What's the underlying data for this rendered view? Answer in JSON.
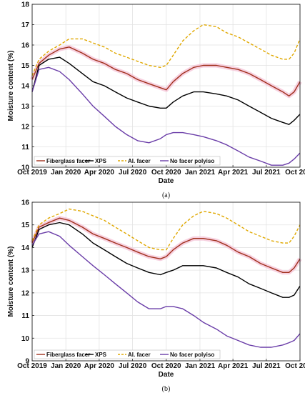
{
  "chart_data": [
    {
      "type": "line",
      "caption": "(a)",
      "xlabel": "Date",
      "ylabel": "Moisture content (%)",
      "ylim": [
        10,
        18
      ],
      "yticks": [
        10,
        11,
        12,
        13,
        14,
        15,
        16,
        17,
        18
      ],
      "xlim": [
        "2019-10-01",
        "2021-10-01"
      ],
      "xticks": [
        "2019-10-01",
        "2020-01-01",
        "2020-04-01",
        "2020-07-01",
        "2020-10-01",
        "2021-01-01",
        "2021-04-01",
        "2021-07-01",
        "2021-10-01"
      ],
      "xticklabels": [
        "Oct 2019",
        "Jan 2020",
        "Apr 2020",
        "Jul 2020",
        "Oct 2020",
        "Jan 2021",
        "Apr 2021",
        "Jul 2021",
        "Oct 2021"
      ],
      "grid": true,
      "legend_position": "bottom",
      "series": [
        {
          "name": "Fiberglass facer",
          "color": "#a0301c",
          "dash": "solid",
          "band": "#f5c6d8",
          "x": [
            "2019-10-01",
            "2019-10-20",
            "2019-11-15",
            "2019-12-15",
            "2020-01-10",
            "2020-02-15",
            "2020-03-15",
            "2020-04-15",
            "2020-05-15",
            "2020-06-15",
            "2020-07-15",
            "2020-08-15",
            "2020-09-15",
            "2020-10-01",
            "2020-10-20",
            "2020-11-15",
            "2020-12-15",
            "2021-01-10",
            "2021-02-15",
            "2021-03-15",
            "2021-04-15",
            "2021-05-15",
            "2021-06-15",
            "2021-07-15",
            "2021-08-15",
            "2021-09-01",
            "2021-09-15",
            "2021-10-01"
          ],
          "y": [
            14.3,
            15.1,
            15.5,
            15.8,
            15.9,
            15.6,
            15.3,
            15.1,
            14.8,
            14.6,
            14.3,
            14.1,
            13.9,
            13.8,
            14.2,
            14.6,
            14.9,
            15.0,
            15.0,
            14.9,
            14.8,
            14.6,
            14.3,
            14.0,
            13.7,
            13.5,
            13.7,
            14.2
          ]
        },
        {
          "name": "XPS",
          "color": "#000000",
          "dash": "solid",
          "band": "",
          "x": [
            "2019-10-01",
            "2019-10-20",
            "2019-11-15",
            "2019-12-15",
            "2020-01-10",
            "2020-02-15",
            "2020-03-15",
            "2020-04-15",
            "2020-05-15",
            "2020-06-15",
            "2020-07-15",
            "2020-08-15",
            "2020-09-15",
            "2020-10-01",
            "2020-10-20",
            "2020-11-15",
            "2020-12-15",
            "2021-01-10",
            "2021-02-15",
            "2021-03-15",
            "2021-04-15",
            "2021-05-15",
            "2021-06-15",
            "2021-07-15",
            "2021-08-15",
            "2021-09-01",
            "2021-09-15",
            "2021-10-01"
          ],
          "y": [
            13.7,
            15.0,
            15.3,
            15.4,
            15.1,
            14.6,
            14.2,
            14.0,
            13.7,
            13.4,
            13.2,
            13.0,
            12.9,
            12.9,
            13.2,
            13.5,
            13.7,
            13.7,
            13.6,
            13.5,
            13.3,
            13.0,
            12.7,
            12.4,
            12.2,
            12.1,
            12.3,
            12.6
          ]
        },
        {
          "name": "Al. facer",
          "color": "#e0a800",
          "dash": "dashed",
          "band": "",
          "x": [
            "2019-10-01",
            "2019-10-20",
            "2019-11-15",
            "2019-12-15",
            "2020-01-10",
            "2020-02-15",
            "2020-03-15",
            "2020-04-15",
            "2020-05-15",
            "2020-06-15",
            "2020-07-15",
            "2020-08-15",
            "2020-09-15",
            "2020-10-01",
            "2020-10-20",
            "2020-11-15",
            "2020-12-15",
            "2021-01-10",
            "2021-02-15",
            "2021-03-15",
            "2021-04-15",
            "2021-05-15",
            "2021-06-15",
            "2021-07-15",
            "2021-08-15",
            "2021-09-01",
            "2021-09-15",
            "2021-10-01"
          ],
          "y": [
            14.5,
            15.3,
            15.7,
            16.0,
            16.3,
            16.3,
            16.1,
            15.9,
            15.6,
            15.4,
            15.2,
            15.0,
            14.9,
            15.0,
            15.5,
            16.2,
            16.7,
            17.0,
            16.9,
            16.6,
            16.4,
            16.1,
            15.8,
            15.5,
            15.3,
            15.3,
            15.6,
            16.3
          ]
        },
        {
          "name": "No facer polyiso",
          "color": "#6a3da8",
          "dash": "solid",
          "band": "",
          "x": [
            "2019-10-01",
            "2019-10-20",
            "2019-11-15",
            "2019-12-15",
            "2020-01-10",
            "2020-02-15",
            "2020-03-15",
            "2020-04-15",
            "2020-05-15",
            "2020-06-15",
            "2020-07-15",
            "2020-08-15",
            "2020-09-15",
            "2020-10-01",
            "2020-10-20",
            "2020-11-15",
            "2020-12-15",
            "2021-01-10",
            "2021-02-15",
            "2021-03-15",
            "2021-04-15",
            "2021-05-15",
            "2021-06-15",
            "2021-07-15",
            "2021-08-15",
            "2021-09-01",
            "2021-09-15",
            "2021-10-01"
          ],
          "y": [
            13.7,
            14.8,
            14.9,
            14.7,
            14.3,
            13.6,
            13.0,
            12.5,
            12.0,
            11.6,
            11.3,
            11.2,
            11.4,
            11.6,
            11.7,
            11.7,
            11.6,
            11.5,
            11.3,
            11.1,
            10.8,
            10.5,
            10.3,
            10.1,
            10.1,
            10.2,
            10.4,
            10.7
          ]
        }
      ]
    },
    {
      "type": "line",
      "caption": "(b)",
      "xlabel": "Date",
      "ylabel": "Moisture content (%)",
      "ylim": [
        9,
        16
      ],
      "yticks": [
        9,
        10,
        11,
        12,
        13,
        14,
        15,
        16
      ],
      "xlim": [
        "2019-10-01",
        "2021-10-01"
      ],
      "xticks": [
        "2019-10-01",
        "2020-01-01",
        "2020-04-01",
        "2020-07-01",
        "2020-10-01",
        "2021-01-01",
        "2021-04-01",
        "2021-07-01",
        "2021-10-01"
      ],
      "xticklabels": [
        "Oct 2019",
        "Jan 2020",
        "Apr 2020",
        "Jul 2020",
        "Oct 2020",
        "Jan 2021",
        "Apr 2021",
        "Jul 2021",
        "Oct 2021"
      ],
      "grid": true,
      "legend_position": "bottom",
      "series": [
        {
          "name": "Fiberglass facer",
          "color": "#a0301c",
          "dash": "solid",
          "band": "#f5c6d8",
          "x": [
            "2019-10-01",
            "2019-10-20",
            "2019-11-15",
            "2019-12-15",
            "2020-01-10",
            "2020-02-15",
            "2020-03-15",
            "2020-04-15",
            "2020-05-15",
            "2020-06-15",
            "2020-07-15",
            "2020-08-15",
            "2020-09-15",
            "2020-10-01",
            "2020-10-20",
            "2020-11-15",
            "2020-12-15",
            "2021-01-10",
            "2021-02-15",
            "2021-03-15",
            "2021-04-15",
            "2021-05-15",
            "2021-06-15",
            "2021-07-15",
            "2021-08-15",
            "2021-09-01",
            "2021-09-15",
            "2021-10-01"
          ],
          "y": [
            14.2,
            14.9,
            15.1,
            15.3,
            15.2,
            14.9,
            14.6,
            14.4,
            14.2,
            14.0,
            13.8,
            13.6,
            13.5,
            13.6,
            13.9,
            14.2,
            14.4,
            14.4,
            14.3,
            14.1,
            13.8,
            13.6,
            13.3,
            13.1,
            12.9,
            12.9,
            13.1,
            13.5
          ]
        },
        {
          "name": "XPS",
          "color": "#000000",
          "dash": "solid",
          "band": "",
          "x": [
            "2019-10-01",
            "2019-10-20",
            "2019-11-15",
            "2019-12-15",
            "2020-01-10",
            "2020-02-15",
            "2020-03-15",
            "2020-04-15",
            "2020-05-15",
            "2020-06-15",
            "2020-07-15",
            "2020-08-15",
            "2020-09-15",
            "2020-10-01",
            "2020-10-20",
            "2020-11-15",
            "2020-12-15",
            "2021-01-10",
            "2021-02-15",
            "2021-03-15",
            "2021-04-15",
            "2021-05-15",
            "2021-06-15",
            "2021-07-15",
            "2021-08-15",
            "2021-09-01",
            "2021-09-15",
            "2021-10-01"
          ],
          "y": [
            14.0,
            14.8,
            15.0,
            15.1,
            15.0,
            14.6,
            14.2,
            13.9,
            13.6,
            13.3,
            13.1,
            12.9,
            12.8,
            12.9,
            13.0,
            13.2,
            13.2,
            13.2,
            13.1,
            12.9,
            12.7,
            12.4,
            12.2,
            12.0,
            11.8,
            11.8,
            11.9,
            12.3
          ]
        },
        {
          "name": "Al. facer",
          "color": "#e0a800",
          "dash": "dashed",
          "band": "",
          "x": [
            "2019-10-01",
            "2019-10-20",
            "2019-11-15",
            "2019-12-15",
            "2020-01-10",
            "2020-02-15",
            "2020-03-15",
            "2020-04-15",
            "2020-05-15",
            "2020-06-15",
            "2020-07-15",
            "2020-08-15",
            "2020-09-15",
            "2020-10-01",
            "2020-10-20",
            "2020-11-15",
            "2020-12-15",
            "2021-01-10",
            "2021-02-15",
            "2021-03-15",
            "2021-04-15",
            "2021-05-15",
            "2021-06-15",
            "2021-07-15",
            "2021-08-15",
            "2021-09-01",
            "2021-09-15",
            "2021-10-01"
          ],
          "y": [
            14.3,
            15.0,
            15.3,
            15.5,
            15.7,
            15.6,
            15.4,
            15.2,
            14.9,
            14.6,
            14.3,
            14.0,
            13.9,
            13.9,
            14.4,
            15.0,
            15.4,
            15.6,
            15.5,
            15.3,
            15.0,
            14.7,
            14.5,
            14.3,
            14.2,
            14.2,
            14.5,
            15.0
          ]
        },
        {
          "name": "No facer polyiso",
          "color": "#6a3da8",
          "dash": "solid",
          "band": "",
          "x": [
            "2019-10-01",
            "2019-10-20",
            "2019-11-15",
            "2019-12-15",
            "2020-01-10",
            "2020-02-15",
            "2020-03-15",
            "2020-04-15",
            "2020-05-15",
            "2020-06-15",
            "2020-07-15",
            "2020-08-15",
            "2020-09-15",
            "2020-10-01",
            "2020-10-20",
            "2020-11-15",
            "2020-12-15",
            "2021-01-10",
            "2021-02-15",
            "2021-03-15",
            "2021-04-15",
            "2021-05-15",
            "2021-06-15",
            "2021-07-15",
            "2021-08-15",
            "2021-09-01",
            "2021-09-15",
            "2021-10-01"
          ],
          "y": [
            14.1,
            14.6,
            14.7,
            14.5,
            14.1,
            13.6,
            13.2,
            12.8,
            12.4,
            12.0,
            11.6,
            11.3,
            11.3,
            11.4,
            11.4,
            11.3,
            11.0,
            10.7,
            10.4,
            10.1,
            9.9,
            9.7,
            9.6,
            9.6,
            9.7,
            9.8,
            9.9,
            10.2
          ]
        }
      ]
    }
  ]
}
